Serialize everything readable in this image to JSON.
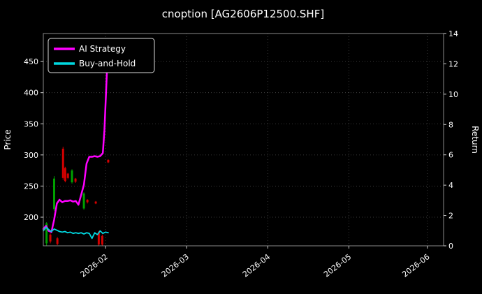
{
  "chart_data": {
    "type": "line",
    "title": "cnoption [AG2606P12500.SHF]",
    "background": "#000000",
    "text_color": "#ffffff",
    "grid_color": "#4a4a4a",
    "candle_up_color": "#00a000",
    "candle_down_color": "#d40000",
    "left_axis": {
      "label": "Price",
      "min": 154,
      "max": 495,
      "ticks": [
        200,
        250,
        300,
        350,
        400,
        450
      ]
    },
    "right_axis": {
      "label": "Return",
      "min": 0,
      "max": 14,
      "ticks": [
        0,
        2,
        4,
        6,
        8,
        10,
        12,
        14
      ]
    },
    "x_axis": {
      "min_day": 0,
      "max_day": 148,
      "ticks": [
        {
          "day": 23,
          "label": "2026-02"
        },
        {
          "day": 53,
          "label": "2026-03"
        },
        {
          "day": 83,
          "label": "2026-04"
        },
        {
          "day": 113,
          "label": "2026-05"
        },
        {
          "day": 142,
          "label": "2026-06"
        }
      ]
    },
    "legend": [
      {
        "name": "AI Strategy",
        "color": "#ff00ff"
      },
      {
        "name": "Buy-and-Hold",
        "color": "#00d8e0"
      }
    ],
    "series": [
      {
        "name": "AI Strategy",
        "color": "#ff00ff",
        "axis": "left",
        "width": 2.5,
        "points": [
          [
            0,
            181
          ],
          [
            1,
            186
          ],
          [
            2,
            178
          ],
          [
            3,
            176
          ],
          [
            4,
            196
          ],
          [
            5,
            222
          ],
          [
            6,
            228
          ],
          [
            7,
            224
          ],
          [
            8,
            226
          ],
          [
            9,
            226
          ],
          [
            10,
            227
          ],
          [
            11,
            225
          ],
          [
            12,
            226
          ],
          [
            13,
            220
          ],
          [
            14,
            236
          ],
          [
            15,
            252
          ],
          [
            16,
            286
          ],
          [
            17,
            297
          ],
          [
            18,
            297
          ],
          [
            19,
            298
          ],
          [
            20,
            297
          ],
          [
            21,
            298
          ],
          [
            22,
            303
          ],
          [
            22.6,
            340
          ],
          [
            23.2,
            400
          ],
          [
            23.8,
            462
          ]
        ]
      },
      {
        "name": "Buy-and-Hold",
        "color": "#00d8e0",
        "axis": "left",
        "width": 1.8,
        "points": [
          [
            0,
            178
          ],
          [
            1,
            184
          ],
          [
            2,
            180
          ],
          [
            3,
            177
          ],
          [
            4,
            181
          ],
          [
            5,
            179
          ],
          [
            6,
            177
          ],
          [
            7,
            176
          ],
          [
            8,
            177
          ],
          [
            9,
            175
          ],
          [
            10,
            176
          ],
          [
            11,
            174
          ],
          [
            12,
            175
          ],
          [
            13,
            174
          ],
          [
            14,
            175
          ],
          [
            15,
            173
          ],
          [
            16,
            175
          ],
          [
            17,
            174
          ],
          [
            18,
            166
          ],
          [
            19,
            175
          ],
          [
            20,
            172
          ],
          [
            21,
            178
          ],
          [
            22,
            174
          ],
          [
            23,
            176
          ],
          [
            24,
            175
          ]
        ]
      }
    ],
    "candles": [
      {
        "day": 1.2,
        "open": 158,
        "close": 190,
        "low": 154,
        "high": 192,
        "dir": "up"
      },
      {
        "day": 2.6,
        "open": 172,
        "close": 161,
        "low": 158,
        "high": 174,
        "dir": "down"
      },
      {
        "day": 4.0,
        "open": 213,
        "close": 262,
        "low": 210,
        "high": 266,
        "dir": "up"
      },
      {
        "day": 5.2,
        "open": 166,
        "close": 157,
        "low": 155,
        "high": 168,
        "dir": "down"
      },
      {
        "day": 7.3,
        "open": 310,
        "close": 263,
        "low": 260,
        "high": 313,
        "dir": "down"
      },
      {
        "day": 8.1,
        "open": 279,
        "close": 258,
        "low": 256,
        "high": 281,
        "dir": "down"
      },
      {
        "day": 9.1,
        "open": 270,
        "close": 263,
        "low": 261,
        "high": 271,
        "dir": "down"
      },
      {
        "day": 10.6,
        "open": 256,
        "close": 275,
        "low": 254,
        "high": 277,
        "dir": "up"
      },
      {
        "day": 11.9,
        "open": 262,
        "close": 257,
        "low": 255,
        "high": 263,
        "dir": "down"
      },
      {
        "day": 15.0,
        "open": 214,
        "close": 238,
        "low": 212,
        "high": 240,
        "dir": "up"
      },
      {
        "day": 16.3,
        "open": 228,
        "close": 224,
        "low": 222,
        "high": 229,
        "dir": "down"
      },
      {
        "day": 19.4,
        "open": 225,
        "close": 222,
        "low": 221,
        "high": 226,
        "dir": "down"
      },
      {
        "day": 20.5,
        "open": 176,
        "close": 156,
        "low": 154,
        "high": 178,
        "dir": "down"
      },
      {
        "day": 21.8,
        "open": 170,
        "close": 156,
        "low": 154,
        "high": 172,
        "dir": "down"
      },
      {
        "day": 24.0,
        "open": 292,
        "close": 288,
        "low": 287,
        "high": 293,
        "dir": "down"
      }
    ]
  }
}
